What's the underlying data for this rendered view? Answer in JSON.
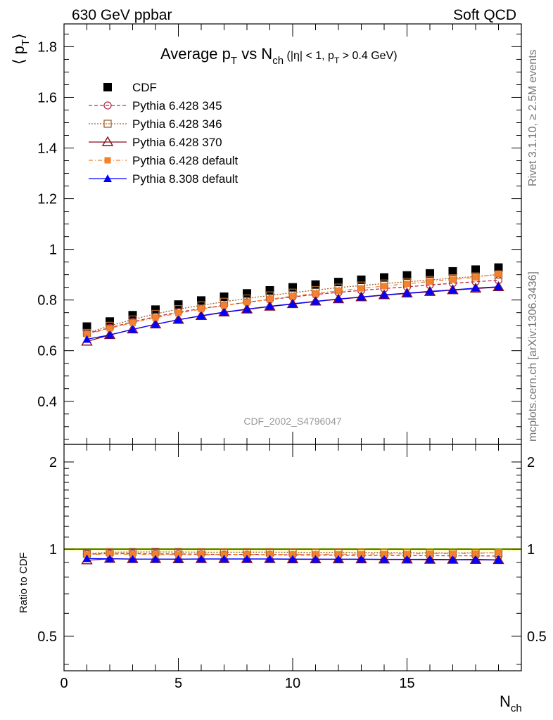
{
  "header": {
    "left": "630 GeV ppbar",
    "right": "Soft QCD"
  },
  "side_text": {
    "top": "Rivet 3.1.10, ≥ 2.5M events",
    "bottom": "mcplots.cern.ch [arXiv:1306.3436]"
  },
  "watermark": "CDF_2002_S4796047",
  "chart_data": [
    {
      "panel": "main",
      "type": "line",
      "title": {
        "main": "Average p",
        "main_sub": "T",
        "vs": " vs N",
        "vs_sub": "ch",
        "cond_a": " (|η| < 1, p",
        "cond_sub": "T",
        "cond_b": " > 0.4 GeV)"
      },
      "ylabel": {
        "main": "⟨ p",
        "sub": "T",
        "close": "⟩"
      },
      "xlim": [
        0,
        20
      ],
      "ylim": [
        0.23,
        1.89
      ],
      "y_ticks": [
        {
          "v": 0.4,
          "label": "0.4"
        },
        {
          "v": 0.6,
          "label": "0.6"
        },
        {
          "v": 0.8,
          "label": "0.8"
        },
        {
          "v": 1.0,
          "label": "1"
        },
        {
          "v": 1.2,
          "label": "1.2"
        },
        {
          "v": 1.4,
          "label": "1.4"
        },
        {
          "v": 1.6,
          "label": "1.6"
        },
        {
          "v": 1.8,
          "label": "1.8"
        }
      ],
      "legend_position": "top-left",
      "x": [
        1,
        2,
        3,
        4,
        5,
        6,
        7,
        8,
        9,
        10,
        11,
        12,
        13,
        14,
        15,
        16,
        17,
        18,
        19
      ],
      "series": [
        {
          "name": "CDF",
          "color": "#000000",
          "marker": "square-filled",
          "dash": "none",
          "values": [
            0.695,
            0.715,
            0.74,
            0.762,
            0.782,
            0.798,
            0.813,
            0.826,
            0.838,
            0.85,
            0.861,
            0.871,
            0.88,
            0.889,
            0.897,
            0.905,
            0.913,
            0.92,
            0.928
          ]
        },
        {
          "name": "Pythia 6.428 345",
          "color": "#b2304a",
          "marker": "circle-open",
          "dash": "5,3",
          "values": [
            0.668,
            0.69,
            0.714,
            0.734,
            0.752,
            0.766,
            0.779,
            0.791,
            0.802,
            0.812,
            0.822,
            0.83,
            0.838,
            0.845,
            0.852,
            0.859,
            0.866,
            0.872,
            0.878
          ]
        },
        {
          "name": "Pythia 6.428 346",
          "color": "#a0622d",
          "marker": "square-open",
          "dash": "2,2",
          "values": [
            0.67,
            0.698,
            0.723,
            0.745,
            0.764,
            0.779,
            0.793,
            0.806,
            0.818,
            0.829,
            0.839,
            0.849,
            0.857,
            0.865,
            0.872,
            0.879,
            0.886,
            0.893,
            0.9
          ]
        },
        {
          "name": "Pythia 6.428 370",
          "color": "#8b0a1a",
          "marker": "triangle-open",
          "dash": "none",
          "values": [
            0.636,
            0.662,
            0.684,
            0.704,
            0.722,
            0.737,
            0.751,
            0.763,
            0.774,
            0.784,
            0.794,
            0.803,
            0.811,
            0.819,
            0.826,
            0.832,
            0.839,
            0.845,
            0.851
          ]
        },
        {
          "name": "Pythia 6.428 default",
          "color": "#f4812b",
          "marker": "square-filled-small",
          "dash": "6,3,1,3",
          "values": [
            0.665,
            0.688,
            0.71,
            0.73,
            0.748,
            0.764,
            0.778,
            0.791,
            0.803,
            0.815,
            0.826,
            0.836,
            0.846,
            0.855,
            0.864,
            0.873,
            0.881,
            0.889,
            0.904
          ]
        },
        {
          "name": "Pythia 8.308 default",
          "color": "#0000ff",
          "marker": "triangle-filled",
          "dash": "none",
          "values": [
            0.645,
            0.662,
            0.684,
            0.704,
            0.722,
            0.738,
            0.752,
            0.764,
            0.775,
            0.785,
            0.795,
            0.804,
            0.812,
            0.82,
            0.827,
            0.834,
            0.84,
            0.847,
            0.852
          ]
        }
      ]
    },
    {
      "panel": "ratio",
      "type": "line",
      "ylabel": "Ratio to CDF",
      "xlabel": {
        "main": "N",
        "sub": "ch"
      },
      "xlim": [
        0,
        20
      ],
      "ylim": [
        0.38,
        2.3
      ],
      "scale": "log",
      "y_ticks": [
        {
          "v": 0.5,
          "label": "0.5"
        },
        {
          "v": 1,
          "label": "1"
        },
        {
          "v": 2,
          "label": "2"
        }
      ],
      "x_ticks": [
        {
          "v": 0,
          "label": "0"
        },
        {
          "v": 5,
          "label": "5"
        },
        {
          "v": 10,
          "label": "10"
        },
        {
          "v": 15,
          "label": "15"
        }
      ],
      "reference_band": {
        "low": 0.99,
        "high": 1.01,
        "color": "#ffff66",
        "line_color": "#00cc00"
      },
      "x": [
        1,
        2,
        3,
        4,
        5,
        6,
        7,
        8,
        9,
        10,
        11,
        12,
        13,
        14,
        15,
        16,
        17,
        18,
        19
      ],
      "series": [
        {
          "name": "Pythia 6.428 345",
          "values": [
            0.961,
            0.965,
            0.965,
            0.963,
            0.962,
            0.96,
            0.958,
            0.958,
            0.957,
            0.955,
            0.955,
            0.953,
            0.952,
            0.95,
            0.95,
            0.949,
            0.948,
            0.948,
            0.946
          ]
        },
        {
          "name": "Pythia 6.428 346",
          "values": [
            0.964,
            0.976,
            0.977,
            0.978,
            0.977,
            0.976,
            0.975,
            0.976,
            0.976,
            0.975,
            0.974,
            0.975,
            0.974,
            0.973,
            0.972,
            0.971,
            0.97,
            0.971,
            0.97
          ]
        },
        {
          "name": "Pythia 6.428 370",
          "values": [
            0.915,
            0.926,
            0.924,
            0.924,
            0.923,
            0.924,
            0.924,
            0.924,
            0.924,
            0.922,
            0.922,
            0.922,
            0.922,
            0.921,
            0.921,
            0.919,
            0.919,
            0.918,
            0.917
          ]
        },
        {
          "name": "Pythia 6.428 default",
          "values": [
            0.957,
            0.962,
            0.959,
            0.958,
            0.957,
            0.957,
            0.957,
            0.958,
            0.958,
            0.959,
            0.959,
            0.96,
            0.961,
            0.962,
            0.963,
            0.965,
            0.965,
            0.966,
            0.974
          ]
        },
        {
          "name": "Pythia 8.308 default",
          "values": [
            0.928,
            0.926,
            0.924,
            0.924,
            0.923,
            0.925,
            0.925,
            0.925,
            0.925,
            0.924,
            0.923,
            0.923,
            0.923,
            0.922,
            0.922,
            0.922,
            0.92,
            0.921,
            0.918
          ]
        }
      ]
    }
  ]
}
